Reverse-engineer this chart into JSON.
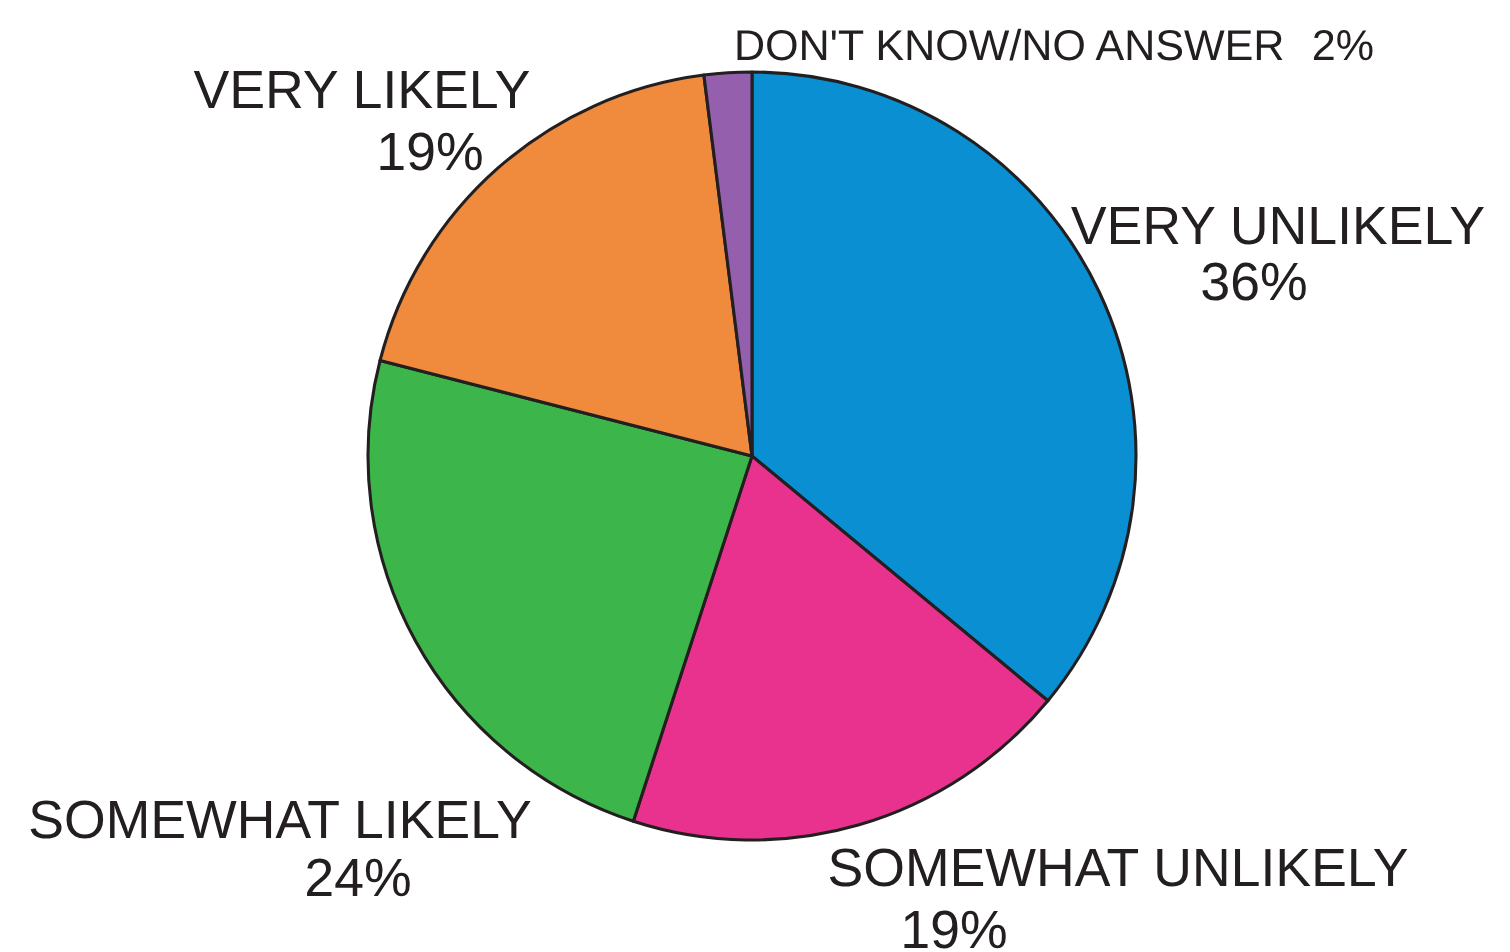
{
  "chart_data": {
    "type": "pie",
    "categories": [
      "VERY UNLIKELY",
      "SOMEWHAT UNLIKELY",
      "SOMEWHAT LIKELY",
      "VERY LIKELY",
      "DON'T KNOW/NO ANSWER"
    ],
    "values": [
      36,
      19,
      24,
      19,
      2
    ],
    "colors": [
      "#0a8fd2",
      "#e8328e",
      "#3cb54a",
      "#f08a3c",
      "#9460ad"
    ],
    "value_labels": [
      "36%",
      "19%",
      "24%",
      "19%",
      "2%"
    ]
  }
}
